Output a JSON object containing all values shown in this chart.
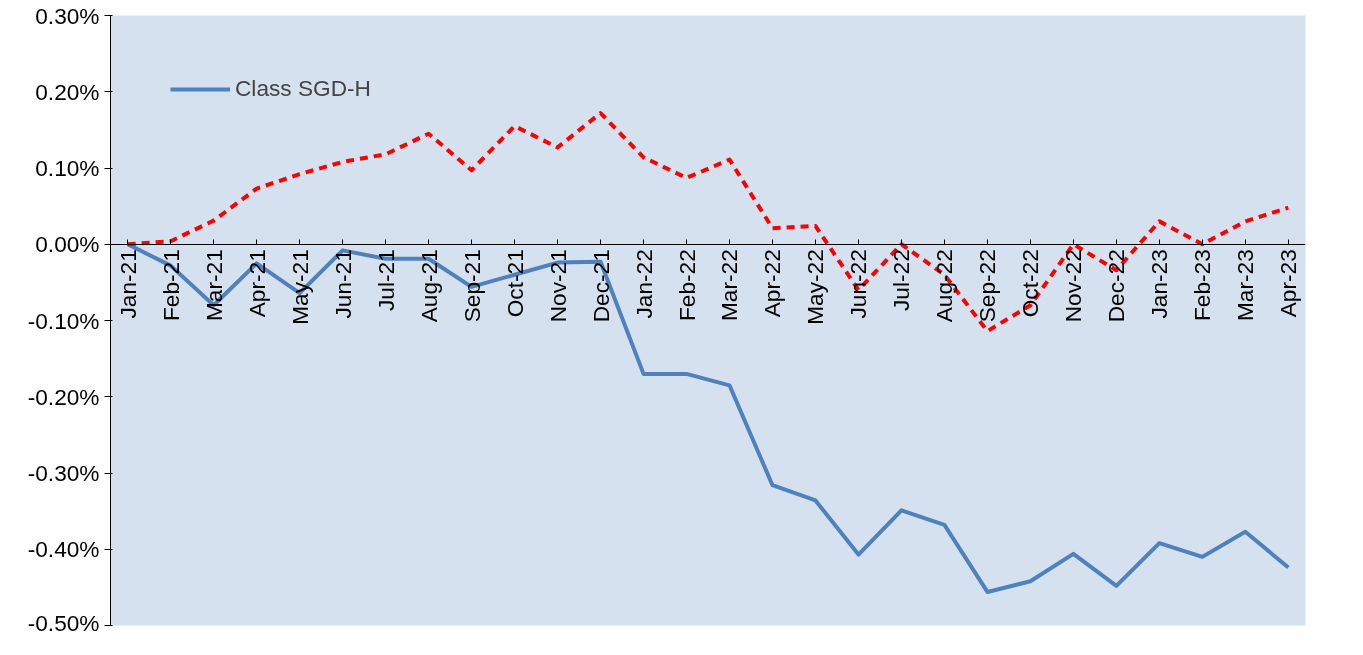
{
  "chart_data": {
    "type": "line",
    "categories": [
      "Jan-21",
      "Feb-21",
      "Mar-21",
      "Apr-21",
      "May-21",
      "Jun-21",
      "Jul-21",
      "Aug-21",
      "Sep-21",
      "Oct-21",
      "Nov-21",
      "Dec-21",
      "Jan-22",
      "Feb-22",
      "Mar-22",
      "Apr-22",
      "May-22",
      "Jun-22",
      "Jul-22",
      "Aug-22",
      "Sep-22",
      "Oct-22",
      "Nov-22",
      "Dec-22",
      "Jan-23",
      "Feb-23",
      "Mar-23",
      "Apr-23"
    ],
    "series": [
      {
        "name": "Class SGD-H",
        "color": "#4f81bd",
        "line_style": "solid",
        "values": [
          0,
          -0.028,
          -0.08,
          -0.025,
          -0.064,
          -0.008,
          -0.019,
          -0.019,
          -0.056,
          -0.04,
          -0.024,
          -0.023,
          -0.17,
          -0.17,
          -0.185,
          -0.316,
          -0.336,
          -0.407,
          -0.349,
          -0.368,
          -0.456,
          -0.442,
          -0.406,
          -0.448,
          -0.392,
          -0.41,
          -0.377,
          -0.424
        ]
      },
      {
        "color": "#ff0000",
        "line_style": "dashed",
        "values": [
          0,
          0.004,
          0.031,
          0.073,
          0.092,
          0.108,
          0.118,
          0.145,
          0.097,
          0.155,
          0.127,
          0.172,
          0.114,
          0.087,
          0.111,
          0.021,
          0.024,
          -0.06,
          0,
          -0.04,
          -0.114,
          -0.08,
          0,
          -0.034,
          0.03,
          0,
          0.03,
          0.048
        ]
      }
    ],
    "ylim": [
      -0.5,
      0.3
    ],
    "yticks": [
      {
        "value": 0.3,
        "label": "0.30%"
      },
      {
        "value": 0.2,
        "label": "0.20%"
      },
      {
        "value": 0.1,
        "label": "0.10%"
      },
      {
        "value": 0,
        "label": "0.00%"
      },
      {
        "value": -0.1,
        "label": "-0.10%"
      },
      {
        "value": -0.2,
        "label": "-0.20%"
      },
      {
        "value": -0.3,
        "label": "-0.30%"
      },
      {
        "value": -0.4,
        "label": "-0.40%"
      },
      {
        "value": -0.5,
        "label": "-0.50%"
      }
    ],
    "grid": false,
    "legend": "top left"
  }
}
